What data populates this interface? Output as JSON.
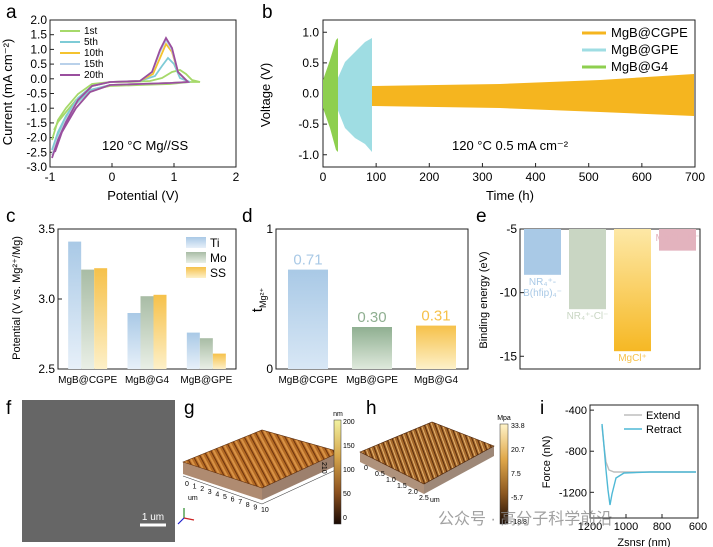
{
  "panels": {
    "a": {
      "label": "a",
      "chart_data": {
        "type": "line",
        "xlabel": "Potential (V)",
        "ylabel": "Current (mA cm⁻²)",
        "xlim": [
          -1,
          2
        ],
        "ylim": [
          -3.0,
          2.0
        ],
        "xticks": [
          "-1",
          "0",
          "1",
          "2"
        ],
        "yticks": [
          "2.0",
          "1.5",
          "1.0",
          "0.5",
          "0.0",
          "-0.5",
          "-1.0",
          "-1.5",
          "-2.0",
          "-2.5",
          "-3.0"
        ],
        "annotation": "120 °C Mg//SS",
        "legend_position": "top-left",
        "series": [
          {
            "name": "1st",
            "color": "#a6d96a"
          },
          {
            "name": "5th",
            "color": "#7ecbd6"
          },
          {
            "name": "10th",
            "color": "#f4c32f"
          },
          {
            "name": "15th",
            "color": "#b9d1ea"
          },
          {
            "name": "20th",
            "color": "#9a4f9e"
          }
        ]
      }
    },
    "b": {
      "label": "b",
      "chart_data": {
        "type": "line",
        "xlabel": "Time (h)",
        "ylabel": "Voltage (V)",
        "xlim": [
          0,
          700
        ],
        "ylim": [
          -1.2,
          1.2
        ],
        "xticks": [
          "0",
          "100",
          "200",
          "300",
          "400",
          "500",
          "600",
          "700"
        ],
        "yticks": [
          "1.0",
          "0.5",
          "0.0",
          "-0.5",
          "-1.0"
        ],
        "annotation": "120 °C 0.5 mA cm⁻²",
        "legend_position": "top-right",
        "series": [
          {
            "name": "MgB@CGPE",
            "color": "#f5b51f",
            "x_end": 700
          },
          {
            "name": "MgB@GPE",
            "color": "#9fdde3",
            "x_end": 90
          },
          {
            "name": "MgB@G4",
            "color": "#8ecf4f",
            "x_end": 28
          }
        ]
      }
    },
    "c": {
      "label": "c",
      "chart_data": {
        "type": "bar",
        "ylabel": "Potential (V vs. Mg²⁺/Mg)",
        "categories": [
          "MgB@CGPE",
          "MgB@G4",
          "MgB@GPE"
        ],
        "ylim": [
          2.5,
          3.5
        ],
        "yticks": [
          "3.5",
          "3.0",
          "2.5"
        ],
        "legend_position": "top-right",
        "series": [
          {
            "name": "Ti",
            "values": [
              3.41,
              2.9,
              2.76
            ],
            "color": "#a9c9e6"
          },
          {
            "name": "Mo",
            "values": [
              3.21,
              3.02,
              2.72
            ],
            "color": "#a8bca5"
          },
          {
            "name": "SS",
            "values": [
              3.22,
              3.03,
              2.61
            ],
            "color": "#f6c14a"
          }
        ]
      }
    },
    "d": {
      "label": "d",
      "chart_data": {
        "type": "bar",
        "ylabel": "t",
        "ylabel_sub": "Mg²⁺",
        "categories": [
          "MgB@CGPE",
          "MgB@GPE",
          "MgB@G4"
        ],
        "values": [
          0.71,
          0.3,
          0.31
        ],
        "value_labels": [
          "0.71",
          "0.30",
          "0.31"
        ],
        "ylim": [
          0,
          1
        ],
        "yticks": [
          "1",
          "0"
        ],
        "colors": [
          "#a9c9e6",
          "#8faf91",
          "#f6c14a"
        ]
      }
    },
    "e": {
      "label": "e",
      "chart_data": {
        "type": "bar",
        "ylabel": "Binding energy (eV)",
        "ylim": [
          -16,
          -5
        ],
        "yticks": [
          "-5",
          "-10",
          "-15"
        ],
        "bars": [
          {
            "label_html": [
              "NR₄⁺-",
              "B(hfip)₄⁻"
            ],
            "value": -8.6,
            "color": "#a9c9e6"
          },
          {
            "label_html": [
              "NR₄⁺-Cl⁻"
            ],
            "value": -11.3,
            "color": "#c9d6c3"
          },
          {
            "label_html": [
              "MgCl⁺"
            ],
            "value": -14.6,
            "color": "#f6c14a"
          },
          {
            "label_html": [
              "MgCl⁺-B⁻"
            ],
            "value": -6.7,
            "color": "#e3b3be"
          }
        ]
      }
    },
    "f": {
      "label": "f",
      "scale_bar": "1 um"
    },
    "g": {
      "label": "g",
      "colorbar_unit": "nm",
      "colorbar_ticks": [
        "200",
        "150",
        "100",
        "50",
        "0"
      ],
      "axis_ticks": [
        "0",
        "1",
        "2",
        "3",
        "4",
        "5",
        "6",
        "7",
        "8",
        "9",
        "10"
      ],
      "axis_unit": "um",
      "z_tick": "210"
    },
    "h": {
      "label": "h",
      "colorbar_unit": "Mpa",
      "colorbar_ticks": [
        "33.8",
        "20.7",
        "7.5",
        "-5.7",
        "-18.8"
      ],
      "axis_ticks": [
        "0",
        "0.5",
        "1.0",
        "1.5",
        "2.0",
        "2.5"
      ],
      "axis_unit": "um"
    },
    "i": {
      "label": "i",
      "chart_data": {
        "type": "line",
        "xlabel": "Zsnsr (nm)",
        "ylabel": "Force (nN)",
        "xlim": [
          1200,
          600
        ],
        "ylim": [
          -1450,
          -350
        ],
        "xticks": [
          "1200",
          "1000",
          "800",
          "600"
        ],
        "yticks": [
          "-400",
          "-800",
          "-1200"
        ],
        "legend_position": "top-right",
        "series": [
          {
            "name": "Extend",
            "color": "#bdbdbd"
          },
          {
            "name": "Retract",
            "color": "#4fb9d6"
          }
        ]
      }
    }
  },
  "watermark": "公众号 · 高分子科学前沿"
}
